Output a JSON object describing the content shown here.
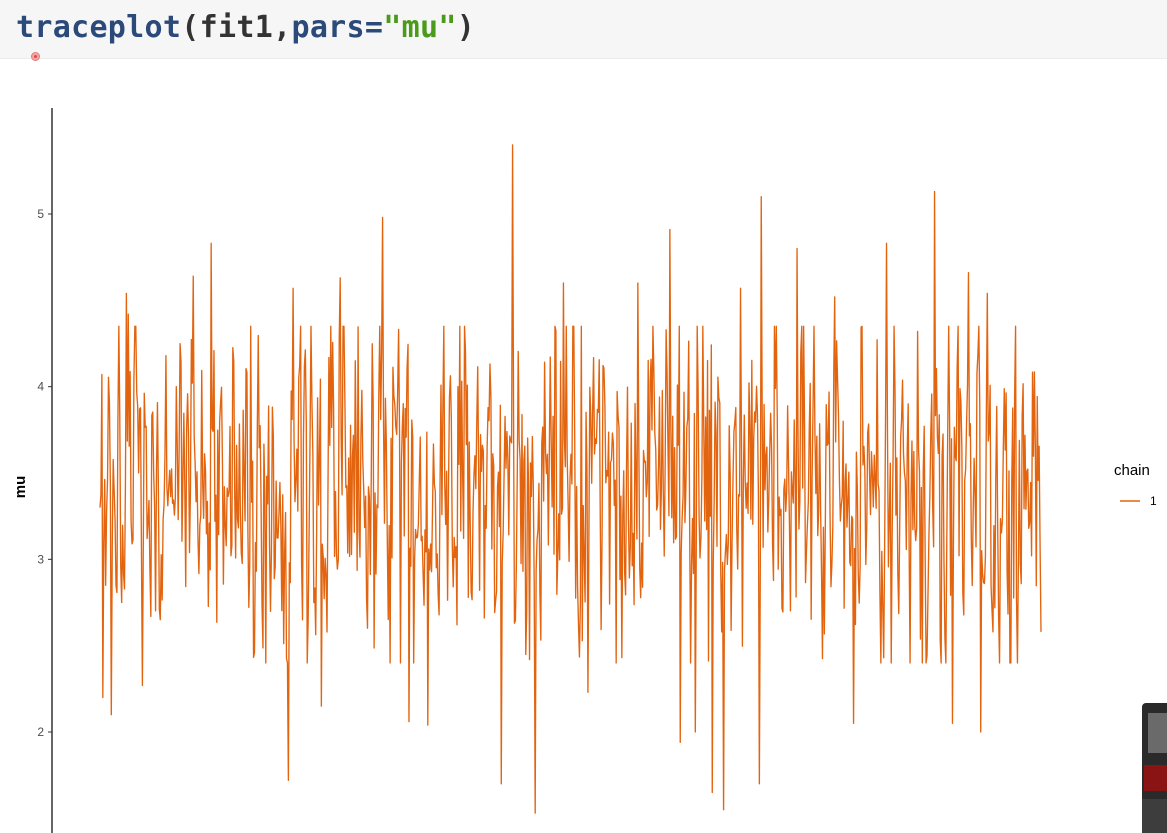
{
  "code": {
    "fn": "traceplot",
    "open": "(",
    "arg1": "fit1,",
    "argname": "pars=",
    "argvalue": "\"mu\"",
    "close": ")"
  },
  "chart_data": {
    "type": "line",
    "ylabel": "mu",
    "xlabel": "",
    "ylim": [
      1.4,
      5.6
    ],
    "yticks": [
      2,
      3,
      4,
      5
    ],
    "grid": false,
    "legend": {
      "title": "chain",
      "entries": [
        "1"
      ],
      "placement": "right"
    },
    "series": [
      {
        "name": "1",
        "color": "#E2640F",
        "n_points": 1000,
        "summary": {
          "mean": 3.4,
          "min": 1.55,
          "max": 5.42
        },
        "peaks": [
          [
            0,
            3.3
          ],
          [
            2,
            4.07
          ],
          [
            3,
            2.2
          ],
          [
            12,
            2.1
          ],
          [
            28,
            4.54
          ],
          [
            30,
            4.42
          ],
          [
            45,
            2.27
          ],
          [
            99,
            4.64
          ],
          [
            118,
            4.83
          ],
          [
            200,
            1.72
          ],
          [
            205,
            4.57
          ],
          [
            235,
            2.15
          ],
          [
            255,
            4.63
          ],
          [
            300,
            4.98
          ],
          [
            328,
            2.06
          ],
          [
            348,
            2.04
          ],
          [
            380,
            4.0
          ],
          [
            426,
            1.7
          ],
          [
            438,
            5.4
          ],
          [
            462,
            1.53
          ],
          [
            492,
            4.6
          ],
          [
            518,
            2.23
          ],
          [
            571,
            4.6
          ],
          [
            605,
            4.91
          ],
          [
            616,
            1.94
          ],
          [
            632,
            2.0
          ],
          [
            650,
            1.65
          ],
          [
            662,
            1.55
          ],
          [
            680,
            4.57
          ],
          [
            700,
            1.7
          ],
          [
            702,
            5.1
          ],
          [
            740,
            4.8
          ],
          [
            780,
            4.52
          ],
          [
            800,
            2.05
          ],
          [
            835,
            4.83
          ],
          [
            840,
            2.4
          ],
          [
            868,
            4.32
          ],
          [
            886,
            5.13
          ],
          [
            905,
            2.05
          ],
          [
            922,
            4.66
          ],
          [
            935,
            2.0
          ],
          [
            942,
            4.54
          ],
          [
            948,
            2.58
          ]
        ]
      }
    ]
  }
}
